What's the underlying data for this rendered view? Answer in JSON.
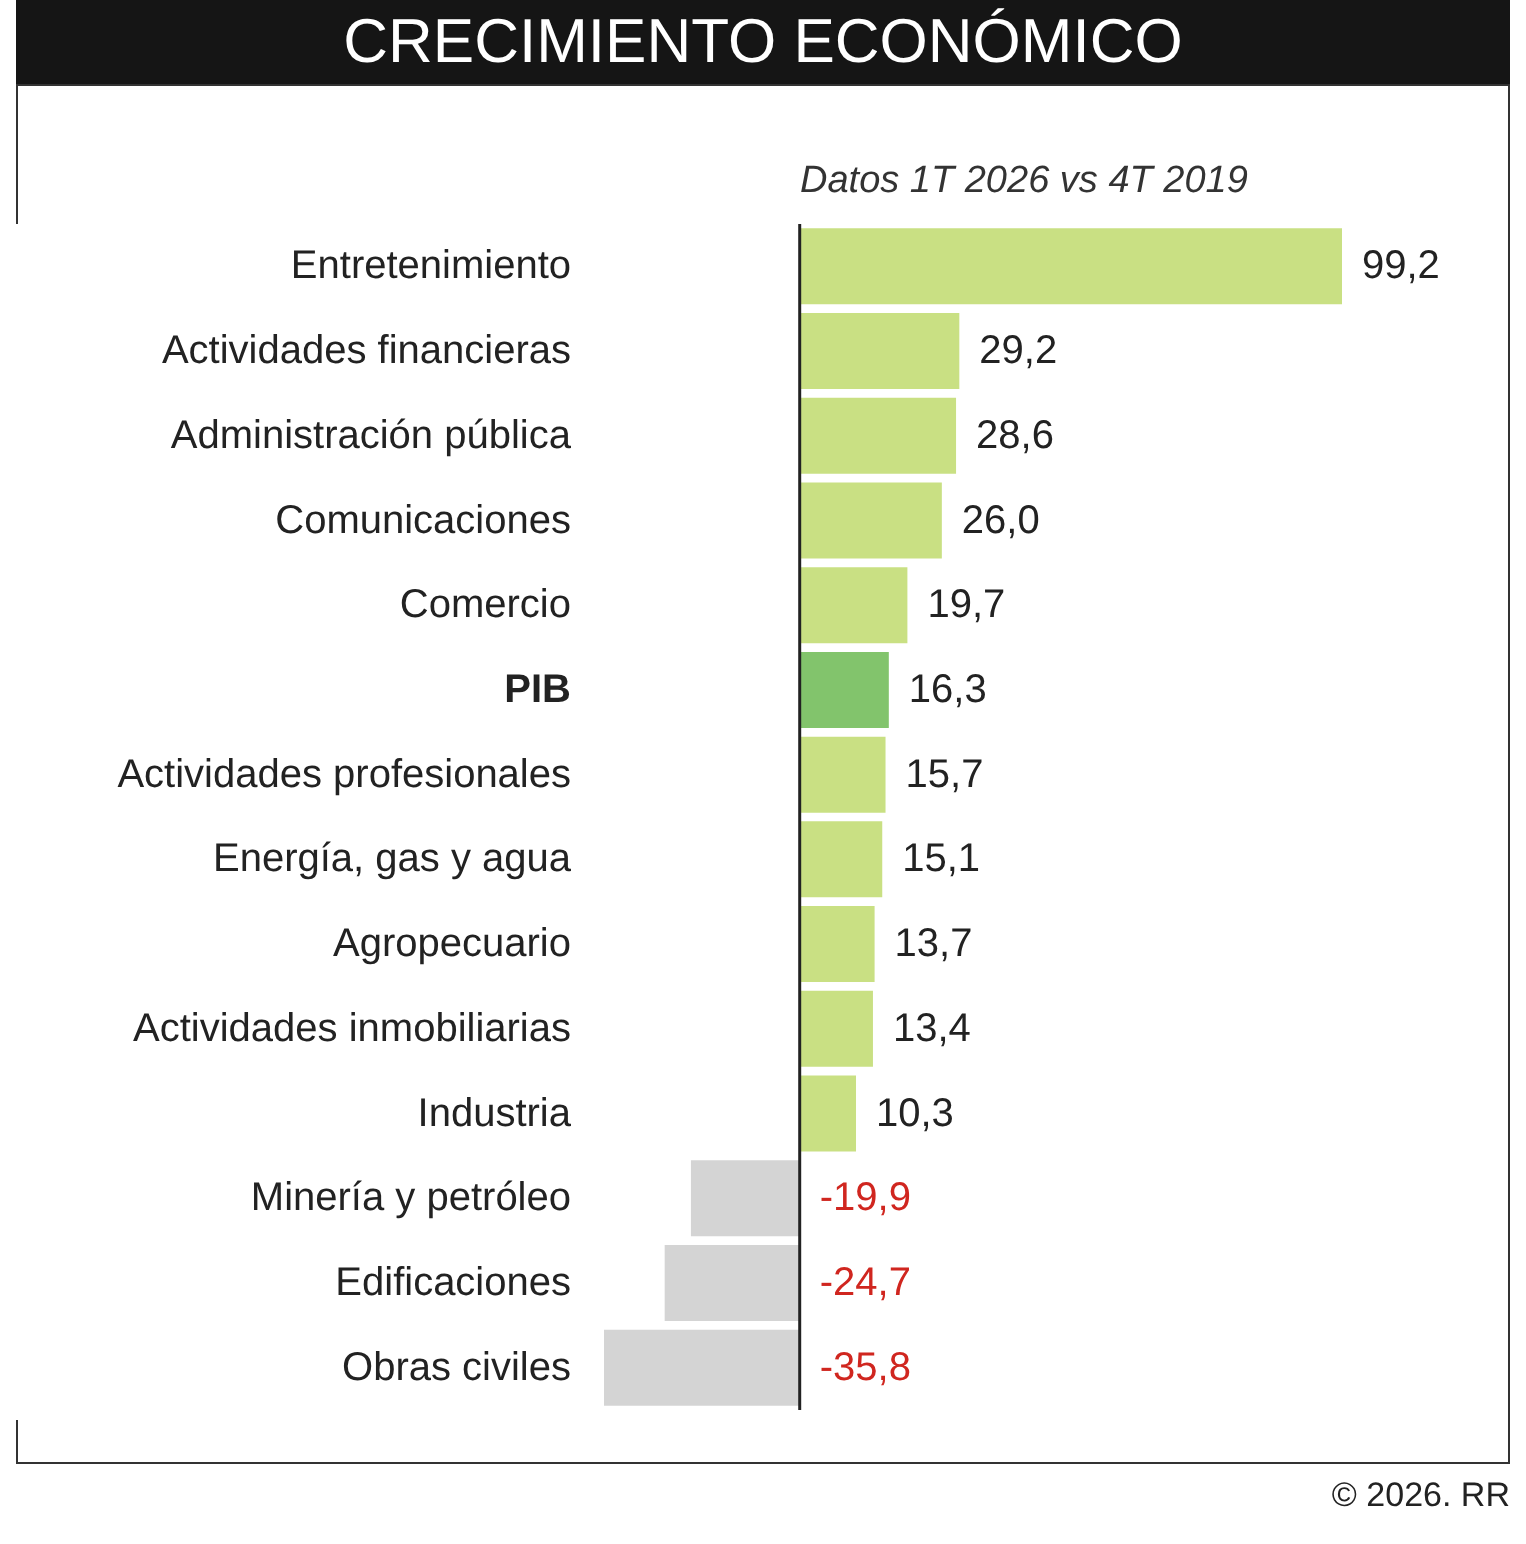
{
  "chart_data": {
    "type": "bar",
    "orientation": "horizontal",
    "title": "CRECIMIENTO ECONÓMICO",
    "subtitle": "Datos 1T 2026 vs 4T 2019",
    "categories": [
      "Entretenimiento",
      "Actividades financieras",
      "Administración pública",
      "Comunicaciones",
      "Comercio",
      "PIB",
      "Actividades profesionales",
      "Energía, gas y agua",
      "Agropecuario",
      "Actividades inmobiliarias",
      "Industria",
      "Minería y petróleo",
      "Edificaciones",
      "Obras civiles"
    ],
    "values": [
      99.2,
      29.2,
      28.6,
      26.0,
      19.7,
      16.3,
      15.7,
      15.1,
      13.7,
      13.4,
      10.3,
      -19.9,
      -24.7,
      -35.8
    ],
    "value_labels": [
      "99,2",
      "29,2",
      "28,6",
      "26,0",
      "19,7",
      "16,3",
      "15,7",
      "15,1",
      "13,7",
      "13,4",
      "10,3",
      "-19,9",
      "-24,7",
      "-35,8"
    ],
    "colors": [
      "#c9e083",
      "#c9e083",
      "#c9e083",
      "#c9e083",
      "#c9e083",
      "#82c46c",
      "#c9e083",
      "#c9e083",
      "#c9e083",
      "#c9e083",
      "#c9e083",
      "#d4d4d4",
      "#d4d4d4",
      "#d4d4d4"
    ],
    "ref_lines": [
      {
        "axis": "x",
        "value": 0,
        "color": "#222222"
      }
    ],
    "annotations": [
      "© 2026. RR"
    ],
    "grid": false
  }
}
